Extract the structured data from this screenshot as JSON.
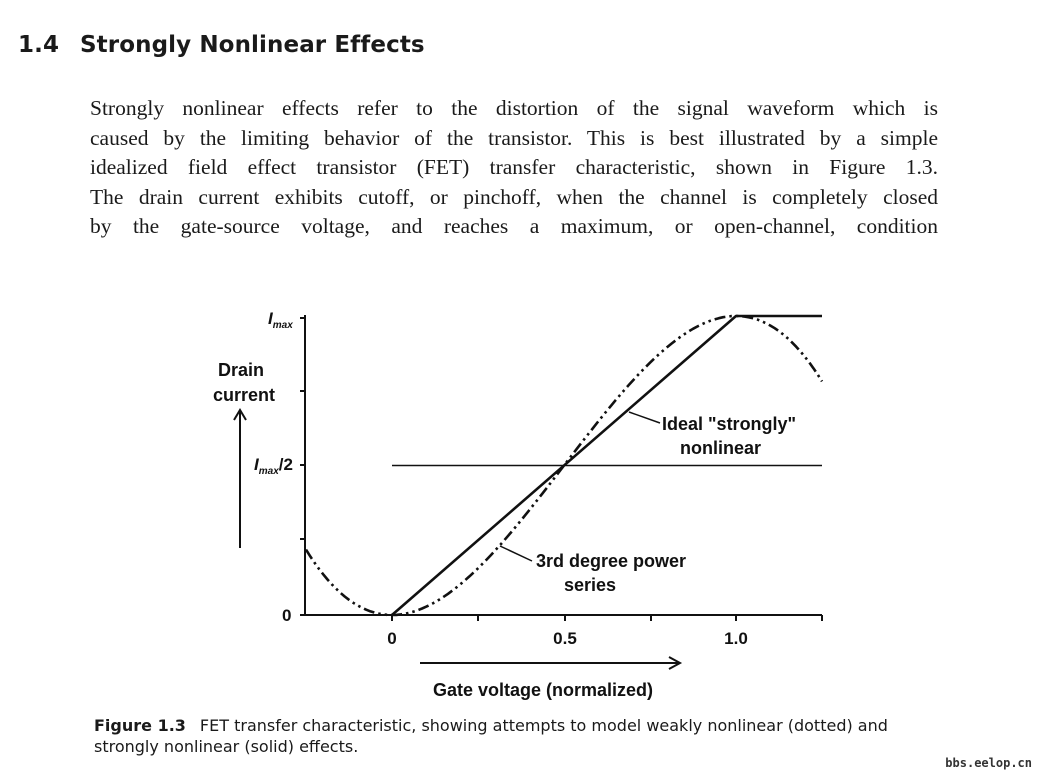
{
  "section": {
    "number": "1.4",
    "title": "Strongly Nonlinear Effects"
  },
  "paragraph": {
    "lines": [
      "Strongly nonlinear effects refer to the distortion of the signal waveform which is",
      "caused by the limiting behavior of the transistor. This is best illustrated by a simple",
      "idealized field effect transistor (FET) transfer characteristic, shown in Figure 1.3.",
      "The drain current exhibits cutoff, or pinchoff, when the channel is completely closed",
      "by the gate-source voltage, and reaches a maximum, or open-channel, condition"
    ]
  },
  "figure": {
    "y_axis": {
      "label_line1": "Drain",
      "label_line2": "current",
      "tick_max_base": "I",
      "tick_max_sub": "max",
      "tick_half_base": "I",
      "tick_half_sub": "max",
      "tick_half_suffix": "/2",
      "tick_zero": "0"
    },
    "x_axis": {
      "label": "Gate voltage (normalized)",
      "ticks": [
        "0",
        "0.5",
        "1.0"
      ]
    },
    "annotations": {
      "ideal_line1": "Ideal \"strongly\"",
      "ideal_line2": "nonlinear",
      "series_line1": "3rd degree power",
      "series_line2": "series"
    },
    "caption_label": "Figure 1.3",
    "caption_text": "FET transfer characteristic, showing attempts to model weakly nonlinear (dotted) and strongly nonlinear (solid) effects."
  },
  "chart_data": {
    "type": "line",
    "title": "",
    "xlabel": "Gate voltage (normalized)",
    "ylabel": "Drain current",
    "xlim": [
      -0.25,
      1.25
    ],
    "ylim": [
      0,
      1
    ],
    "x_ticks": [
      0,
      0.5,
      1.0
    ],
    "y_ticks": [
      {
        "value": 0,
        "label": "0"
      },
      {
        "value": 0.5,
        "label": "I_max/2"
      },
      {
        "value": 1,
        "label": "I_max"
      }
    ],
    "series": [
      {
        "name": "Ideal \"strongly\" nonlinear",
        "style": "solid",
        "x": [
          0,
          1.0,
          1.25
        ],
        "y": [
          0,
          1,
          1
        ]
      },
      {
        "name": "3rd degree power series",
        "style": "dash-dot-dot",
        "function": "y = 0.5 + 1.5*(x-0.5) - 2*(x-0.5)^3",
        "x": [
          -0.25,
          -0.125,
          0,
          0.125,
          0.25,
          0.375,
          0.5,
          0.625,
          0.75,
          0.875,
          1.0,
          1.125,
          1.25
        ],
        "y": [
          0.219,
          0.059,
          0,
          0.02,
          0.156,
          0.316,
          0.5,
          0.684,
          0.844,
          0.98,
          1,
          0.941,
          0.781
        ]
      },
      {
        "name": "half-level reference",
        "style": "solid-thin",
        "x": [
          0,
          1.25
        ],
        "y": [
          0.5,
          0.5
        ]
      }
    ]
  },
  "watermark": "bbs.eelop.cn"
}
